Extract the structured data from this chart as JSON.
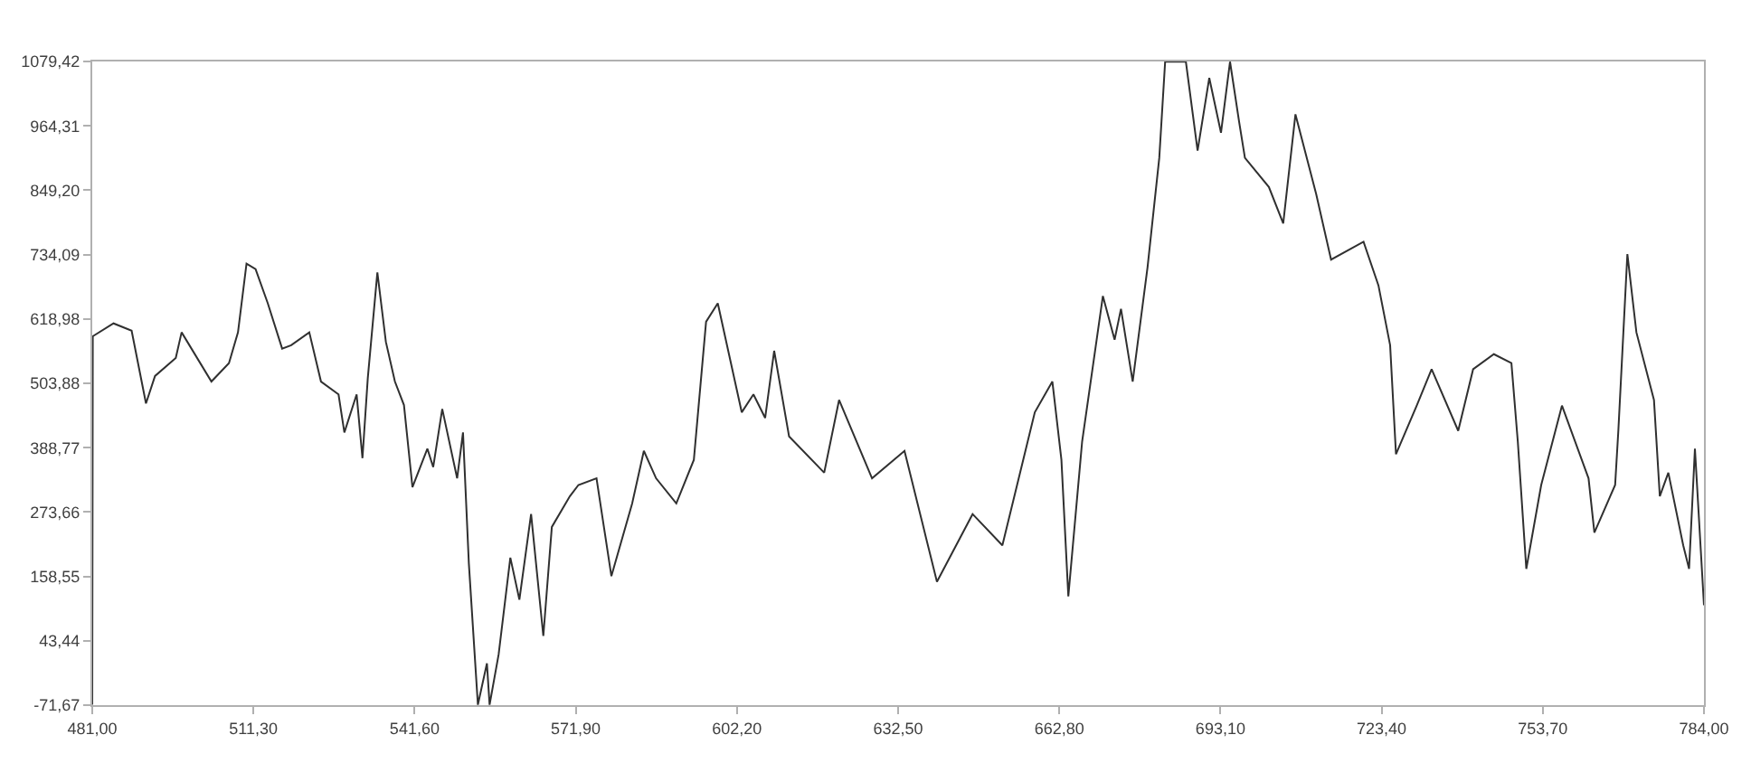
{
  "chart_data": {
    "type": "line",
    "marker": "none",
    "line_style": "solid",
    "xlim": [
      481.0,
      784.0
    ],
    "xticks": [
      {
        "value": 481.0,
        "label": "481,00"
      },
      {
        "value": 511.3,
        "label": "511,30"
      },
      {
        "value": 541.6,
        "label": "541,60"
      },
      {
        "value": 571.9,
        "label": "571,90"
      },
      {
        "value": 602.2,
        "label": "602,20"
      },
      {
        "value": 632.5,
        "label": "632,50"
      },
      {
        "value": 662.8,
        "label": "662,80"
      },
      {
        "value": 693.1,
        "label": "693,10"
      },
      {
        "value": 723.4,
        "label": "723,40"
      },
      {
        "value": 753.7,
        "label": "753,70"
      },
      {
        "value": 784.0,
        "label": "784,00"
      }
    ],
    "ylim": [
      -71.67,
      1079.42
    ],
    "yticks": [
      {
        "value": -71.67,
        "label": "-71,67"
      },
      {
        "value": 43.44,
        "label": "43,44"
      },
      {
        "value": 158.55,
        "label": "158,55"
      },
      {
        "value": 273.66,
        "label": "273,66"
      },
      {
        "value": 388.77,
        "label": "388,77"
      },
      {
        "value": 503.88,
        "label": "503,88"
      },
      {
        "value": 618.98,
        "label": "618,98"
      },
      {
        "value": 734.09,
        "label": "734,09"
      },
      {
        "value": 849.2,
        "label": "849,20"
      },
      {
        "value": 964.31,
        "label": "964,31"
      },
      {
        "value": 1079.42,
        "label": "1079,42"
      }
    ],
    "series": [
      {
        "color": "#303030",
        "x": [
          481,
          481.1,
          485,
          488.4,
          491.1,
          492.8,
          496.7,
          497.8,
          503.4,
          506.7,
          508.4,
          510,
          511.7,
          514,
          516.7,
          518.4,
          521.8,
          524,
          527.3,
          528.4,
          530.7,
          531.8,
          532.8,
          534.6,
          536.2,
          537.9,
          539.6,
          541.2,
          544,
          545.1,
          546.8,
          549.6,
          550.7,
          551.8,
          553.5,
          555.2,
          555.7,
          557.4,
          559.6,
          561.3,
          563.5,
          565.8,
          567.4,
          570.8,
          572.4,
          575.8,
          578.6,
          582.5,
          584.7,
          587,
          590.8,
          594.1,
          596.4,
          598.6,
          603.1,
          605.3,
          607.5,
          609.2,
          612,
          618.6,
          621.4,
          627.6,
          633.7,
          639.8,
          646.5,
          652.1,
          658.2,
          661.5,
          663.2,
          664.5,
          667.1,
          671,
          673.2,
          674.4,
          676.6,
          679.4,
          681.6,
          682.7,
          686.6,
          688.8,
          691,
          693.2,
          694.9,
          696.6,
          697.7,
          702.2,
          704.9,
          707.2,
          711.1,
          713.9,
          720,
          722.8,
          725,
          726.1,
          730,
          732.8,
          737.8,
          740.6,
          744.5,
          747.8,
          749,
          750.6,
          753.4,
          757.3,
          762.3,
          763.4,
          767.3,
          767.9,
          769.6,
          771.3,
          774.6,
          775.7,
          777.3,
          780.1,
          781.2,
          782.3,
          784
        ],
        "values": [
          -71,
          588,
          611,
          598,
          468,
          517,
          549,
          595,
          507,
          540,
          595,
          718,
          708,
          647,
          566,
          572,
          595,
          507,
          484,
          416,
          484,
          370,
          513,
          702,
          578,
          507,
          465,
          318,
          387,
          354,
          458,
          334,
          416,
          182,
          -71,
          3,
          -71,
          19,
          192,
          117,
          270,
          52,
          247,
          302,
          322,
          334,
          159,
          289,
          383,
          334,
          289,
          367,
          614,
          647,
          452,
          484,
          442,
          562,
          409,
          344,
          474,
          334,
          383,
          149,
          270,
          214,
          452,
          507,
          367,
          123,
          400,
          660,
          582,
          637,
          507,
          712,
          907,
          1079,
          1079,
          920,
          1050,
          952,
          1079,
          972,
          907,
          855,
          790,
          985,
          842,
          725,
          757,
          679,
          572,
          377,
          464,
          529,
          419,
          529,
          556,
          540,
          400,
          172,
          322,
          464,
          334,
          237,
          322,
          419,
          735,
          595,
          474,
          302,
          344,
          214,
          172,
          387,
          107
        ]
      }
    ]
  }
}
